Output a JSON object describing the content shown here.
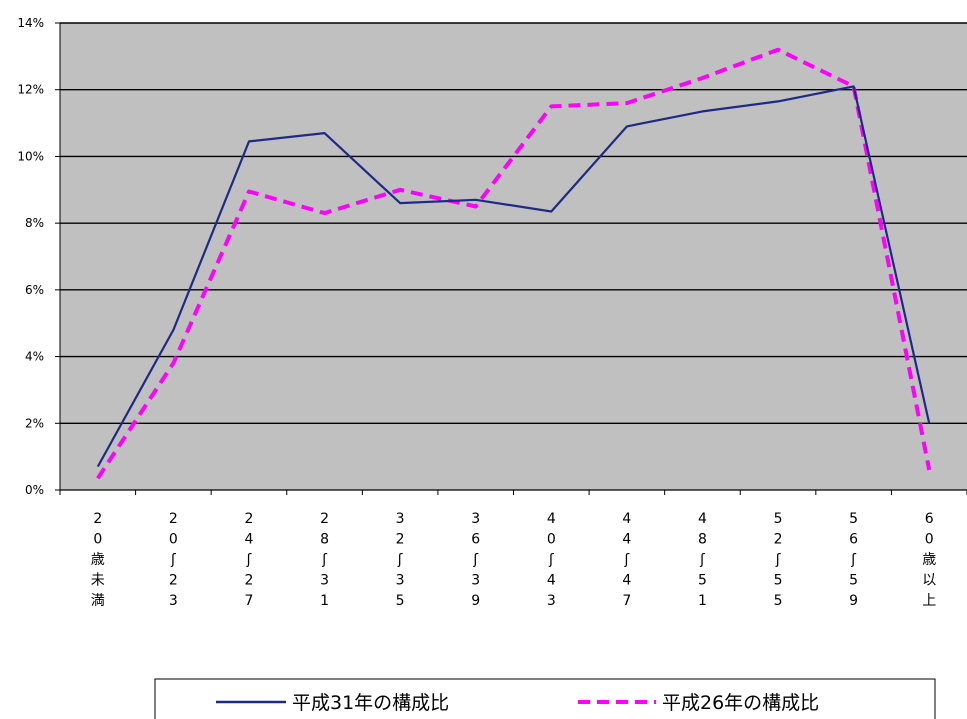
{
  "chart_data": {
    "type": "line",
    "categories": [
      "20歳未満",
      "20~23",
      "24~27",
      "28~31",
      "32~35",
      "36~39",
      "40~43",
      "44~47",
      "48~51",
      "52~55",
      "56~59",
      "60歳以上"
    ],
    "category_labels": [
      [
        "2",
        "0",
        "歳",
        "未",
        "満"
      ],
      [
        "2",
        "0",
        "ʃ",
        "2",
        "3"
      ],
      [
        "2",
        "4",
        "ʃ",
        "2",
        "7"
      ],
      [
        "2",
        "8",
        "ʃ",
        "3",
        "1"
      ],
      [
        "3",
        "2",
        "ʃ",
        "3",
        "5"
      ],
      [
        "3",
        "6",
        "ʃ",
        "3",
        "9"
      ],
      [
        "4",
        "0",
        "ʃ",
        "4",
        "3"
      ],
      [
        "4",
        "4",
        "ʃ",
        "4",
        "7"
      ],
      [
        "4",
        "8",
        "ʃ",
        "5",
        "1"
      ],
      [
        "5",
        "2",
        "ʃ",
        "5",
        "5"
      ],
      [
        "5",
        "6",
        "ʃ",
        "5",
        "9"
      ],
      [
        "6",
        "0",
        "歳",
        "以",
        "上"
      ]
    ],
    "series": [
      {
        "name": "平成31年の構成比",
        "values": [
          0.7,
          4.8,
          10.45,
          10.7,
          8.6,
          8.7,
          8.35,
          10.9,
          11.35,
          11.65,
          12.1,
          2.0
        ],
        "color": "#1f2a86",
        "style": "solid"
      },
      {
        "name": "平成26年の構成比",
        "values": [
          0.35,
          3.8,
          8.95,
          8.3,
          9.0,
          8.5,
          11.5,
          11.6,
          12.35,
          13.2,
          12.1,
          0.6
        ],
        "color": "#ff00ff",
        "style": "dashed"
      }
    ],
    "yticks": [
      "0%",
      "2%",
      "4%",
      "6%",
      "8%",
      "10%",
      "12%",
      "14%"
    ],
    "ylim": [
      0,
      14
    ],
    "grid": true,
    "legend_position": "bottom",
    "colors": {
      "plot_background": "#c0c0c0",
      "gridline": "#000000"
    }
  }
}
